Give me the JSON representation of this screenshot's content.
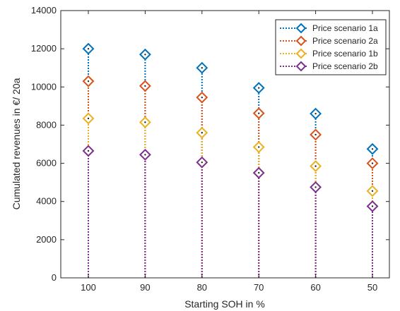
{
  "chart_data": {
    "type": "scatter",
    "xlabel": "Starting SOH in %",
    "ylabel": "Cumulated revenues in €/ 20a",
    "categories": [
      "100",
      "90",
      "80",
      "70",
      "60",
      "50"
    ],
    "ylim": [
      0,
      14000
    ],
    "yticks": [
      0,
      2000,
      4000,
      6000,
      8000,
      10000,
      12000,
      14000
    ],
    "grid": false,
    "legend_position": "top-right",
    "marker": "diamond",
    "stem_style": "dotted vertical stems from 0",
    "series": [
      {
        "name": "Price scenario 1a",
        "color": "#0072BD",
        "values": [
          12000,
          11700,
          11000,
          9950,
          8600,
          6750
        ]
      },
      {
        "name": "Price scenario 2a",
        "color": "#D95319",
        "values": [
          10300,
          10050,
          9450,
          8620,
          7500,
          6000
        ]
      },
      {
        "name": "Price scenario 1b",
        "color": "#EDB120",
        "values": [
          8350,
          8150,
          7600,
          6850,
          5850,
          4550
        ]
      },
      {
        "name": "Price scenario 2b",
        "color": "#7E2F8E",
        "values": [
          6650,
          6450,
          6050,
          5500,
          4750,
          3750
        ]
      }
    ]
  }
}
